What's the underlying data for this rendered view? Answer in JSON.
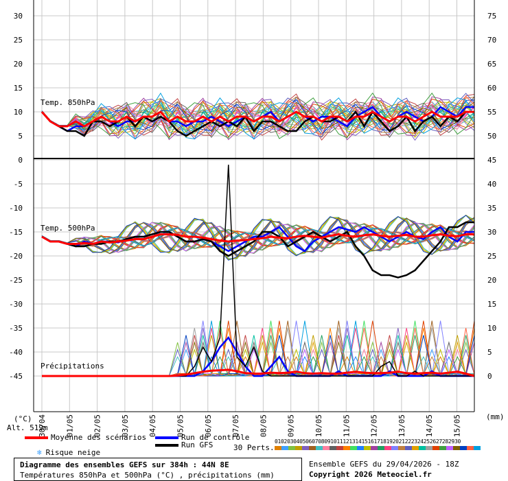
{
  "chart_data": {
    "type": "line",
    "left_axis_unit": "(°C)",
    "right_axis_unit": "(mm)",
    "left_ticks": [
      "30",
      "25",
      "20",
      "15",
      "10",
      "5",
      "0",
      "-5",
      "-10",
      "-15",
      "-20",
      "-25",
      "-30",
      "-35",
      "-40",
      "-45"
    ],
    "right_ticks_top": [
      "75",
      "70",
      "65",
      "60",
      "55",
      "50"
    ],
    "right_ticks_bottom": [
      "45",
      "40",
      "35",
      "30",
      "25",
      "20",
      "15",
      "10",
      "5",
      "0"
    ],
    "x_labels": [
      "30/04",
      "01/05",
      "02/05",
      "03/05",
      "04/05",
      "05/05",
      "06/05",
      "07/05",
      "08/05",
      "09/05",
      "10/05",
      "11/05",
      "12/05",
      "13/05",
      "14/05",
      "15/05"
    ],
    "panel_labels": {
      "t850": "Temp. 850hPa",
      "t500": "Temp. 500hPa",
      "precip": "Précipitations"
    },
    "altitude": "Alt. 519m",
    "series": [
      {
        "name": "Moyenne des scénarios",
        "color": "#ff0000",
        "t850": [
          10,
          8,
          7,
          7,
          8,
          7,
          8,
          9,
          8,
          8,
          9,
          8,
          9,
          9,
          10,
          8,
          9,
          8,
          8,
          9,
          8,
          9,
          8,
          9,
          9,
          8,
          9,
          9,
          8,
          9,
          10,
          9,
          9,
          8,
          9,
          9,
          8,
          9,
          9,
          10,
          9,
          8,
          9,
          9,
          8,
          9,
          10,
          9,
          9,
          9,
          10,
          10
        ],
        "t500": [
          -16,
          -17,
          -17,
          -17.5,
          -17.5,
          -17.3,
          -17.5,
          -17,
          -17.2,
          -17,
          -16.8,
          -16.5,
          -16.5,
          -16,
          -15.5,
          -15.5,
          -15.6,
          -16,
          -16,
          -16.2,
          -16.5,
          -16.8,
          -17,
          -16.8,
          -16.7,
          -16.5,
          -16.3,
          -16,
          -16.2,
          -16.3,
          -16,
          -15.8,
          -16,
          -16.2,
          -15.8,
          -15.5,
          -15.8,
          -16,
          -15.7,
          -15.5,
          -15.8,
          -16,
          -15.8,
          -15.6,
          -16,
          -16,
          -15.7,
          -15.5,
          -15.8,
          -15.9,
          -15.5,
          -15.5
        ],
        "precip": [
          0,
          0,
          0,
          0,
          0,
          0,
          0,
          0,
          0,
          0,
          0,
          0,
          0,
          0,
          0,
          0,
          0.1,
          0.3,
          0.6,
          0.9,
          1.1,
          1.2,
          1.3,
          1,
          0.6,
          0.5,
          0.5,
          0.7,
          0.6,
          0.7,
          0.9,
          0.6,
          0.5,
          0.6,
          0.5,
          0.5,
          0.7,
          0.9,
          0.7,
          0.6,
          0.6,
          0.7,
          0.9,
          0.6,
          0.5,
          0.6,
          0.7,
          0.5,
          0.7,
          0.9,
          0.5,
          0
        ]
      },
      {
        "name": "Run de contrôle",
        "color": "#0000ff",
        "t850": [
          10,
          8,
          7,
          6,
          7,
          7,
          8,
          9,
          8,
          7,
          8,
          8,
          9,
          8,
          9,
          8,
          8,
          7,
          8,
          8,
          9,
          8,
          7,
          8,
          9,
          8,
          9,
          10,
          8,
          9,
          10,
          9,
          8,
          9,
          9,
          8,
          7,
          9,
          10,
          11,
          9,
          8,
          9,
          10,
          9,
          8,
          9,
          11,
          10,
          9,
          11,
          11
        ],
        "t500": [
          -16,
          -17,
          -17,
          -17.5,
          -18,
          -17,
          -17.5,
          -17,
          -17,
          -17.2,
          -16.5,
          -16,
          -16,
          -15.5,
          -15,
          -15,
          -16,
          -17,
          -17,
          -16.5,
          -17,
          -18,
          -19,
          -18,
          -17,
          -16,
          -16,
          -15,
          -14,
          -16,
          -18,
          -19,
          -17,
          -16,
          -15,
          -14,
          -14.5,
          -15,
          -14,
          -15,
          -16,
          -17,
          -16,
          -15,
          -16,
          -16.5,
          -15,
          -14,
          -16,
          -17,
          -15,
          -15
        ],
        "precip": [
          0,
          0,
          0,
          0,
          0,
          0,
          0,
          0,
          0,
          0,
          0,
          0,
          0,
          0,
          0,
          0,
          0,
          0,
          0,
          1,
          3,
          6,
          8,
          5,
          2,
          0,
          0,
          2,
          4,
          1,
          0,
          0,
          0,
          0,
          0,
          1,
          0,
          0,
          0,
          0,
          0,
          1,
          0,
          0,
          0,
          0,
          1,
          0,
          0,
          0,
          0,
          0
        ]
      },
      {
        "name": "Run GFS",
        "color": "#000000",
        "t850": [
          10,
          8,
          7,
          6,
          6,
          5,
          8,
          8,
          7,
          8,
          9,
          7,
          9,
          8,
          9,
          8,
          6,
          5,
          6,
          7,
          8,
          7,
          8,
          7,
          9,
          6,
          8,
          8,
          7,
          6,
          6,
          8,
          9,
          8,
          8,
          9,
          8,
          10,
          7,
          10,
          8,
          6,
          7,
          9,
          6,
          8,
          9,
          7,
          9,
          8,
          10,
          10
        ],
        "t500": [
          -16,
          -17,
          -17,
          -17.5,
          -18,
          -18,
          -17.5,
          -17.5,
          -17,
          -17,
          -16.5,
          -16,
          -16,
          -15.5,
          -15,
          -15,
          -16,
          -17,
          -17,
          -16.5,
          -17,
          -19,
          -20,
          -19,
          -18,
          -17,
          -15,
          -15,
          -16,
          -18,
          -17,
          -16,
          -15,
          -16,
          -17,
          -16,
          -15,
          -18,
          -20,
          -23,
          -24,
          -24,
          -24.5,
          -24,
          -23,
          -21,
          -19,
          -17,
          -14,
          -14,
          -13,
          -13
        ],
        "precip": [
          0,
          0,
          0,
          0,
          0,
          0,
          0,
          0,
          0,
          0,
          0,
          0,
          0,
          0,
          0,
          0,
          0,
          0,
          2,
          6,
          3,
          8,
          44,
          4,
          2,
          6,
          1,
          0,
          0,
          0,
          0,
          0,
          0,
          0,
          0,
          0,
          0,
          0,
          0,
          0,
          2,
          3,
          0,
          0,
          1,
          0,
          0,
          0,
          0,
          0,
          0,
          0
        ]
      }
    ],
    "perturbations_label": "30 Perts.",
    "perturbation_numbers": [
      "01",
      "02",
      "03",
      "04",
      "05",
      "06",
      "07",
      "08",
      "09",
      "10",
      "11",
      "12",
      "13",
      "14",
      "15",
      "16",
      "17",
      "18",
      "19",
      "20",
      "21",
      "22",
      "23",
      "24",
      "25",
      "26",
      "27",
      "28",
      "29",
      "30"
    ],
    "perturbation_colors": [
      "#e08000",
      "#40a0ff",
      "#80c040",
      "#c0a000",
      "#8060c0",
      "#a06020",
      "#40c0c0",
      "#ff80a0",
      "#606060",
      "#c04040",
      "#ff8000",
      "#40e060",
      "#2080ff",
      "#c0c000",
      "#a040a0",
      "#20a060",
      "#ff4080",
      "#8080ff",
      "#c08040",
      "#6060c0",
      "#e0a000",
      "#00c0a0",
      "#a0a0a0",
      "#e04000",
      "#40a040",
      "#c060ff",
      "#806000",
      "#0040c0",
      "#ff6040",
      "#00a0e0"
    ]
  },
  "legend": {
    "mean": "Moyenne des scénarios",
    "control": "Run de contrôle",
    "gfs": "Run GFS",
    "snow": "Risque neige"
  },
  "footer": {
    "title": "Diagramme des ensembles GEFS sur 384h : 44N 8E",
    "subtitle": "Températures 850hPa et 500hPa (°C) , précipitations (mm)",
    "run": "Ensemble GEFS du 29/04/2026 - 18Z",
    "copyright": "Copyright 2026 Meteociel.fr"
  }
}
